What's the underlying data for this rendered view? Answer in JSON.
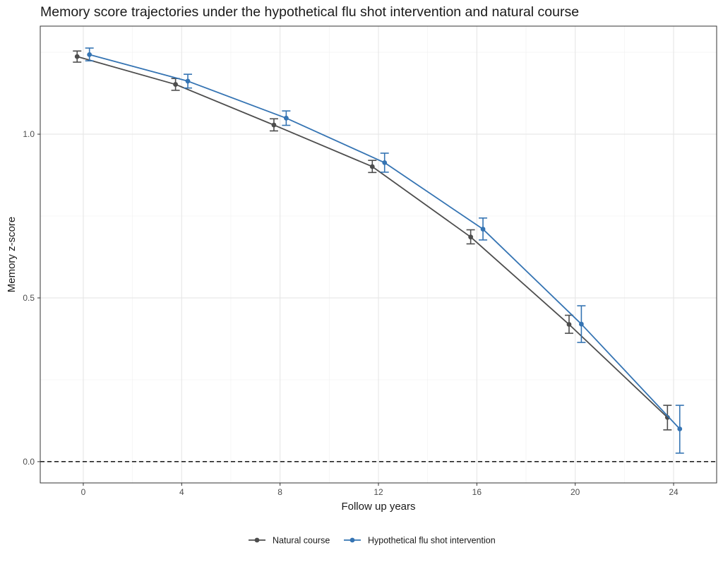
{
  "chart_data": {
    "type": "line",
    "title": "Memory score trajectories under the hypothetical flu shot intervention and natural course",
    "xlabel": "Follow up years",
    "ylabel": "Memory z-score",
    "x_ticks": [
      0,
      4,
      8,
      12,
      16,
      20,
      24
    ],
    "y_ticks": [
      0.0,
      0.5,
      1.0
    ],
    "y_tick_labels": [
      "0.0",
      "0.5",
      "1.0"
    ],
    "xlim": [
      -1.75,
      25.75
    ],
    "ylim": [
      -0.065,
      1.33
    ],
    "grid": true,
    "reference_line": {
      "y": 0,
      "style": "dashed"
    },
    "legend_position": "bottom",
    "series": [
      {
        "name": "Natural course",
        "color": "#4d4d4d",
        "x_offset": -0.25,
        "points": [
          {
            "x": 0,
            "y": 1.237,
            "lo": 1.22,
            "hi": 1.254
          },
          {
            "x": 4,
            "y": 1.152,
            "lo": 1.134,
            "hi": 1.17
          },
          {
            "x": 8,
            "y": 1.028,
            "lo": 1.01,
            "hi": 1.047
          },
          {
            "x": 12,
            "y": 0.901,
            "lo": 0.883,
            "hi": 0.92
          },
          {
            "x": 16,
            "y": 0.686,
            "lo": 0.665,
            "hi": 0.708
          },
          {
            "x": 20,
            "y": 0.419,
            "lo": 0.392,
            "hi": 0.447
          },
          {
            "x": 24,
            "y": 0.135,
            "lo": 0.097,
            "hi": 0.172
          }
        ]
      },
      {
        "name": "Hypothetical flu shot intervention",
        "color": "#3574b3",
        "x_offset": 0.25,
        "points": [
          {
            "x": 0,
            "y": 1.243,
            "lo": 1.224,
            "hi": 1.263
          },
          {
            "x": 4,
            "y": 1.162,
            "lo": 1.141,
            "hi": 1.183
          },
          {
            "x": 8,
            "y": 1.049,
            "lo": 1.027,
            "hi": 1.071
          },
          {
            "x": 12,
            "y": 0.913,
            "lo": 0.884,
            "hi": 0.942
          },
          {
            "x": 16,
            "y": 0.71,
            "lo": 0.677,
            "hi": 0.744
          },
          {
            "x": 20,
            "y": 0.42,
            "lo": 0.364,
            "hi": 0.476
          },
          {
            "x": 24,
            "y": 0.1,
            "lo": 0.026,
            "hi": 0.172
          }
        ]
      }
    ]
  }
}
